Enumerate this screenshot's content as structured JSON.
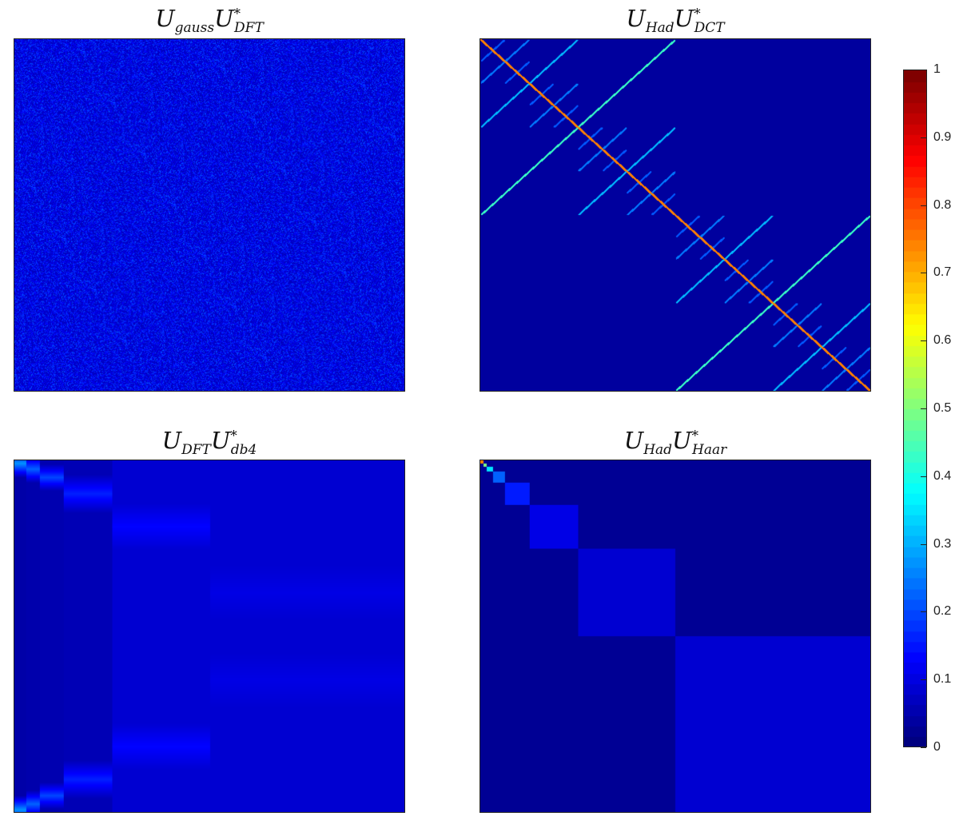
{
  "chart_data": [
    {
      "type": "heatmap",
      "title": {
        "base": "U",
        "sub1": "gauss",
        "base2": "U",
        "sub2": "DFT",
        "sup2": "*"
      },
      "pattern": "random-uniform",
      "value_range": [
        0.0,
        0.15
      ],
      "colormap": "jet",
      "clim": [
        0,
        1
      ]
    },
    {
      "type": "heatmap",
      "title": {
        "base": "U",
        "sub1": "Had",
        "base2": "U",
        "sub2": "DCT",
        "sup2": "*"
      },
      "pattern": "fractal-diagonal",
      "diagonal_value": 0.75,
      "off_diagonal_value": 0.05,
      "colormap": "jet",
      "clim": [
        0,
        1
      ]
    },
    {
      "type": "heatmap",
      "title": {
        "base": "U",
        "sub1": "DFT",
        "base2": "U",
        "sub2": "db4",
        "sup2": "*"
      },
      "pattern": "wavelet-bands",
      "column_levels": [
        0.25,
        0.2,
        0.17,
        0.13,
        0.1,
        0.07
      ],
      "colormap": "jet",
      "clim": [
        0,
        1
      ]
    },
    {
      "type": "heatmap",
      "title": {
        "base": "U",
        "sub1": "Had",
        "base2": "U",
        "sub2": "Haar",
        "sup2": "*"
      },
      "pattern": "dyadic-blocks",
      "block_values": [
        0.75,
        0.5,
        0.35,
        0.22,
        0.15,
        0.1,
        0.08
      ],
      "background_value": 0.02,
      "colormap": "jet",
      "clim": [
        0,
        1
      ]
    }
  ],
  "colorbar": {
    "ticks": [
      "0",
      "0.1",
      "0.2",
      "0.3",
      "0.4",
      "0.5",
      "0.6",
      "0.7",
      "0.8",
      "0.9",
      "1"
    ],
    "range": [
      0,
      1
    ]
  }
}
